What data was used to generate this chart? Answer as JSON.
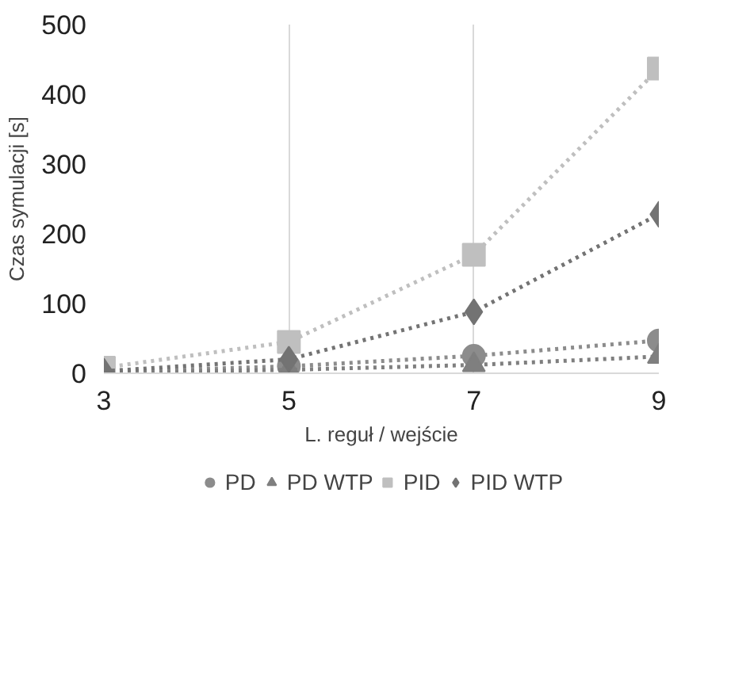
{
  "chart_data": {
    "type": "line",
    "xlabel": "L. reguł / wejście",
    "ylabel": "Czas symulacji [s]",
    "x": [
      3,
      5,
      7,
      9
    ],
    "xlim": [
      3,
      9
    ],
    "xticks": [
      3,
      5,
      7,
      9
    ],
    "ylim": [
      0,
      500
    ],
    "yticks": [
      0,
      100,
      200,
      300,
      400,
      500
    ],
    "grid": "x",
    "legend": "bottom",
    "line_style": "dotted",
    "series": [
      {
        "name": "PD",
        "color": "#8c8c8c",
        "marker": "circle",
        "values": [
          2,
          10,
          25,
          47
        ]
      },
      {
        "name": "PD WTP",
        "color": "#7f7f7f",
        "marker": "triangle",
        "values": [
          1,
          5,
          12,
          24
        ]
      },
      {
        "name": "PID",
        "color": "#bfbfbf",
        "marker": "square",
        "values": [
          8,
          45,
          170,
          437
        ]
      },
      {
        "name": "PID WTP",
        "color": "#737373",
        "marker": "diamond",
        "values": [
          3,
          20,
          88,
          228
        ]
      }
    ]
  }
}
